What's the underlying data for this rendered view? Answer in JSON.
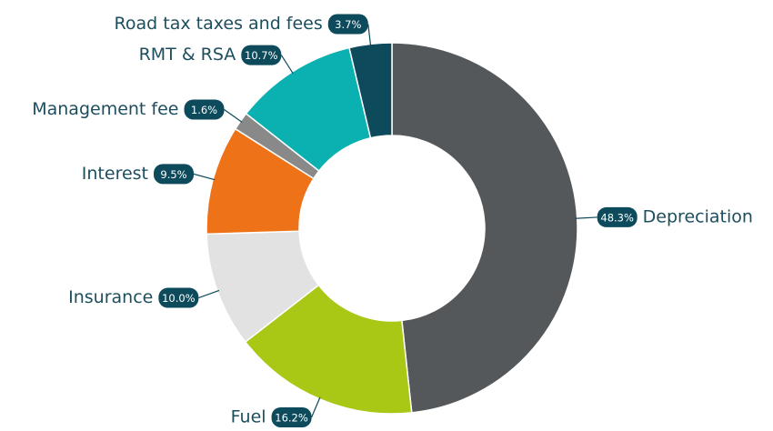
{
  "chart_data": {
    "type": "donut",
    "categories": [
      "Depreciation",
      "Fuel",
      "Insurance",
      "Interest",
      "Management fee",
      "RMT & RSA",
      "Road tax taxes and fees"
    ],
    "values": [
      48.3,
      16.2,
      10,
      9.5,
      1.6,
      10.7,
      3.7
    ],
    "value_labels": [
      "48.3%",
      "16.2%",
      "10.0%",
      "9.5%",
      "1.6%",
      "10.7%",
      "3.7%"
    ],
    "colors": [
      "#54585a",
      "#a8c815",
      "#e2e2e2",
      "#ee7318",
      "#898989",
      "#0bb1b1",
      "#0d4a5c"
    ]
  }
}
